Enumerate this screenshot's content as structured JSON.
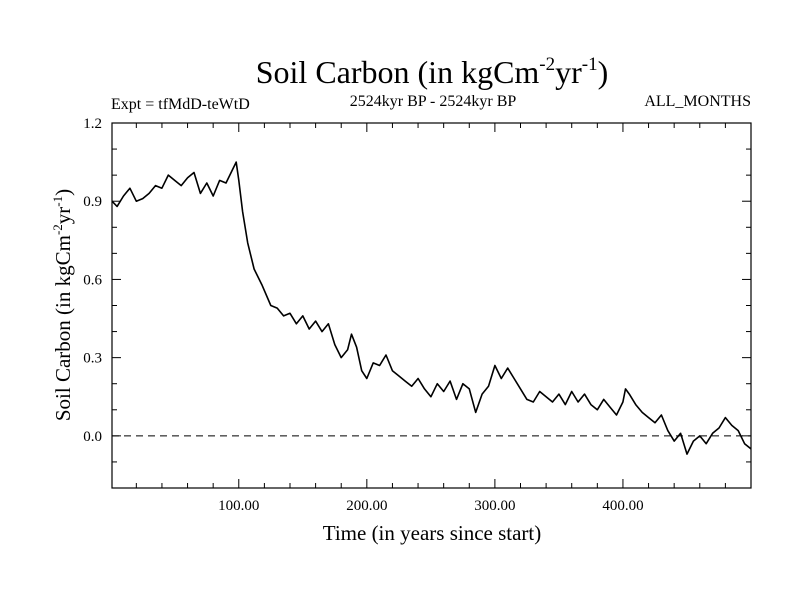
{
  "chart_data": {
    "type": "line",
    "title": {
      "main": "Soil Carbon (in kgCm",
      "sup1": "-2",
      "mid": "yr",
      "sup2": "-1",
      "end": ")"
    },
    "experiment_label": "Expt = tfMdD-teWtD",
    "period_label": "2524kyr BP - 2524kyr BP",
    "months_label": "ALL_MONTHS",
    "xlabel": "Time (in years since start)",
    "ylabel": {
      "main": "Soil Carbon (in kgCm",
      "sup1": "-2",
      "mid": "yr",
      "sup2": "-1",
      "end": ")"
    },
    "xlim": [
      1,
      500
    ],
    "ylim": [
      -0.2,
      1.2
    ],
    "x_ticks": [
      100,
      200,
      300,
      400
    ],
    "x_tick_labels": [
      "100.00",
      "200.00",
      "300.00",
      "400.00"
    ],
    "y_ticks": [
      0.0,
      0.3,
      0.6,
      0.9,
      1.2
    ],
    "y_tick_labels": [
      "0.0",
      "0.3",
      "0.6",
      "0.9",
      "1.2"
    ],
    "reference_line": {
      "y": 0.0,
      "style": "dashed"
    },
    "series": [
      {
        "name": "Soil Carbon",
        "x": [
          1,
          5,
          10,
          15,
          20,
          25,
          30,
          35,
          40,
          45,
          50,
          55,
          60,
          65,
          70,
          75,
          80,
          85,
          90,
          95,
          98,
          100,
          103,
          107,
          112,
          118,
          125,
          130,
          135,
          140,
          145,
          150,
          155,
          160,
          165,
          170,
          175,
          180,
          185,
          188,
          192,
          196,
          200,
          205,
          210,
          215,
          220,
          225,
          230,
          235,
          240,
          245,
          250,
          255,
          260,
          265,
          270,
          275,
          280,
          285,
          290,
          295,
          300,
          305,
          310,
          315,
          320,
          325,
          330,
          335,
          340,
          345,
          350,
          355,
          360,
          365,
          370,
          375,
          380,
          385,
          390,
          395,
          400,
          402,
          405,
          410,
          415,
          420,
          425,
          430,
          435,
          440,
          445,
          450,
          455,
          460,
          465,
          470,
          475,
          480,
          485,
          490,
          495,
          500
        ],
        "values": [
          0.9,
          0.88,
          0.92,
          0.95,
          0.9,
          0.91,
          0.93,
          0.96,
          0.95,
          1.0,
          0.98,
          0.96,
          0.99,
          1.01,
          0.93,
          0.97,
          0.92,
          0.98,
          0.97,
          1.02,
          1.05,
          0.98,
          0.86,
          0.74,
          0.64,
          0.58,
          0.5,
          0.49,
          0.46,
          0.47,
          0.43,
          0.46,
          0.41,
          0.44,
          0.4,
          0.43,
          0.35,
          0.3,
          0.33,
          0.39,
          0.34,
          0.25,
          0.22,
          0.28,
          0.27,
          0.31,
          0.25,
          0.23,
          0.21,
          0.19,
          0.22,
          0.18,
          0.15,
          0.2,
          0.17,
          0.21,
          0.14,
          0.2,
          0.18,
          0.09,
          0.16,
          0.19,
          0.27,
          0.22,
          0.26,
          0.22,
          0.18,
          0.14,
          0.13,
          0.17,
          0.15,
          0.13,
          0.16,
          0.12,
          0.17,
          0.13,
          0.16,
          0.12,
          0.1,
          0.14,
          0.11,
          0.08,
          0.13,
          0.18,
          0.16,
          0.12,
          0.09,
          0.07,
          0.05,
          0.08,
          0.02,
          -0.02,
          0.01,
          -0.07,
          -0.02,
          0.0,
          -0.03,
          0.01,
          0.03,
          0.07,
          0.04,
          0.02,
          -0.03,
          -0.05
        ]
      }
    ]
  }
}
